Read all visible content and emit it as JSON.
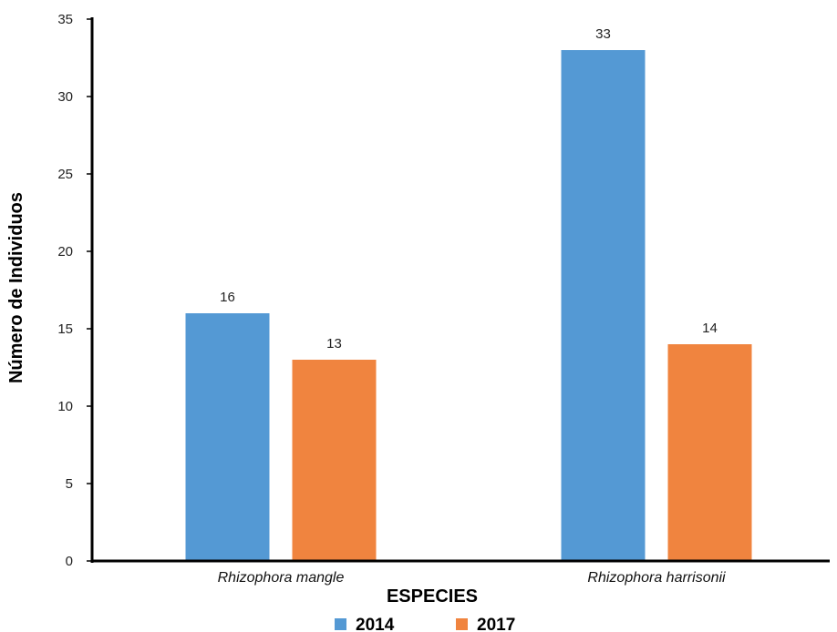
{
  "chart_data": {
    "type": "bar",
    "categories": [
      "Rhizophora mangle",
      "Rhizophora harrisonii"
    ],
    "series": [
      {
        "name": "2014",
        "values": [
          16,
          33
        ],
        "color": "#5499d4"
      },
      {
        "name": "2017",
        "values": [
          13,
          14
        ],
        "color": "#f0843f"
      }
    ],
    "xlabel": "ESPECIES",
    "ylabel": "Número de Individuos",
    "ylim": [
      0,
      35
    ],
    "yticks": [
      0,
      5,
      10,
      15,
      20,
      25,
      30,
      35
    ],
    "grid": false,
    "legend_position": "bottom"
  }
}
